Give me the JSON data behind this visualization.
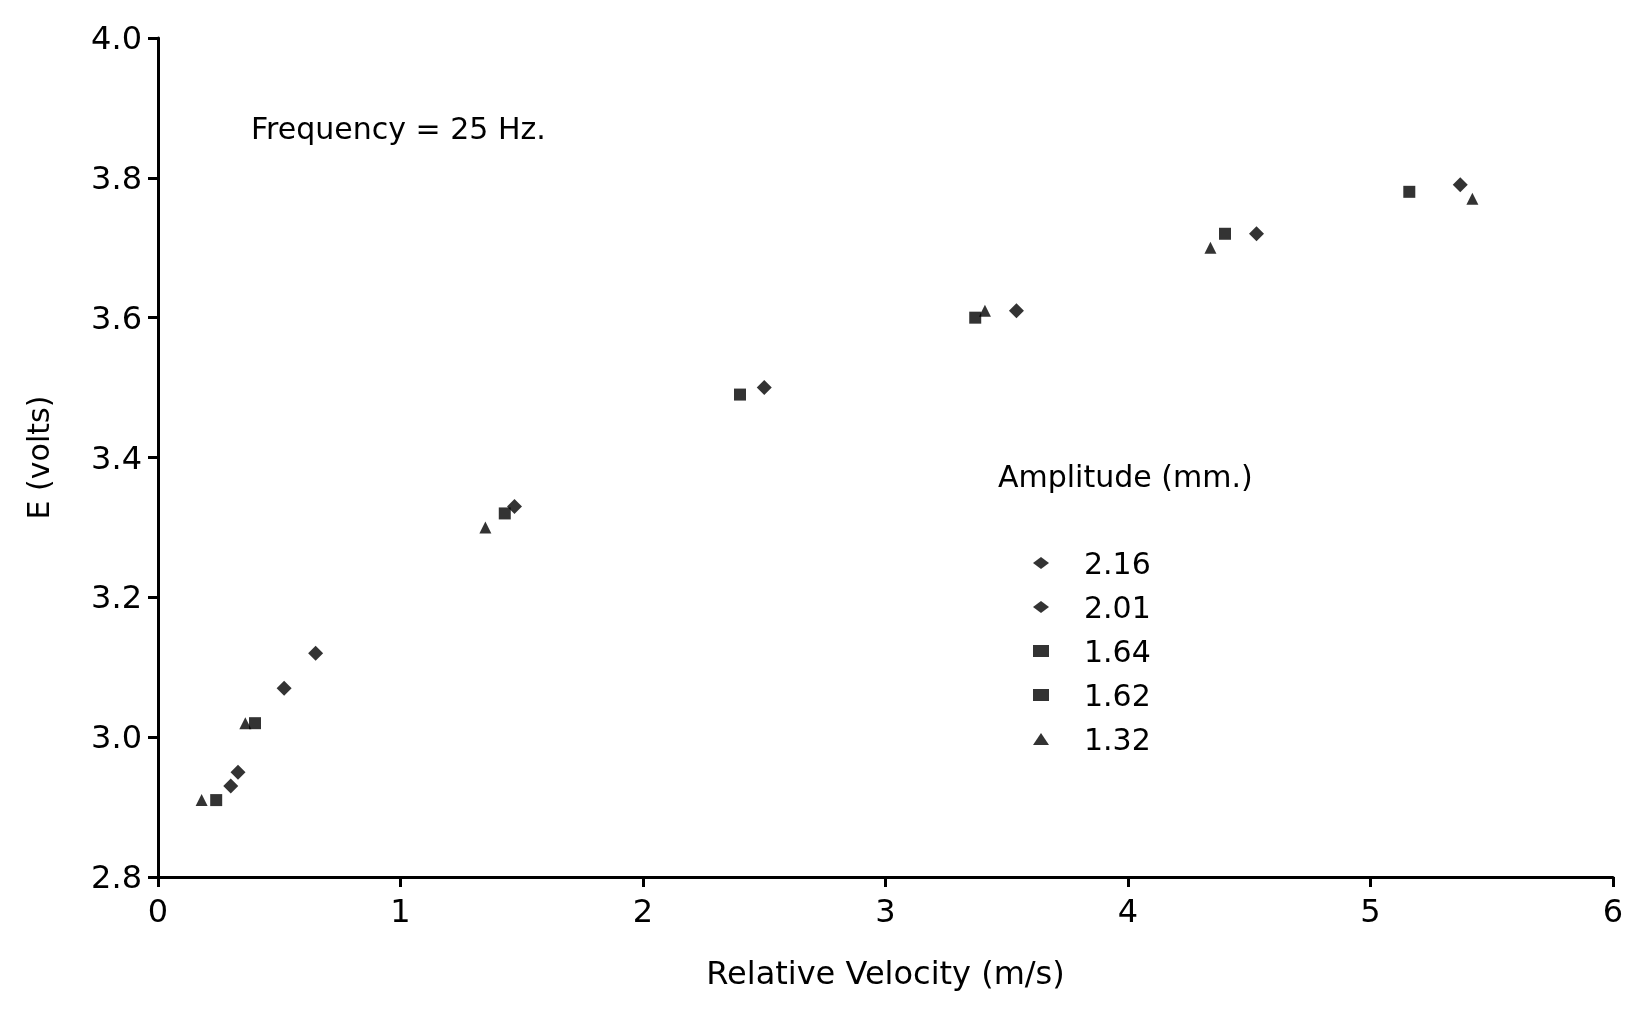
{
  "chart_data": {
    "type": "scatter",
    "xlabel": "Relative Velocity (m/s)",
    "ylabel": "E (volts)",
    "legend_title": "Amplitude (mm.)",
    "annotations": [
      "Frequency = 25 Hz."
    ],
    "xlim": [
      0,
      6
    ],
    "xticks": [
      0,
      1,
      2,
      3,
      4,
      5,
      6
    ],
    "ylim": [
      2.8,
      4.0
    ],
    "yticks": [
      {
        "value": 2.8,
        "label": "2.8"
      },
      {
        "value": 3.0,
        "label": "3.0"
      },
      {
        "value": 3.2,
        "label": "3.2"
      },
      {
        "value": 3.4,
        "label": "3.4"
      },
      {
        "value": 3.6,
        "label": "3.6"
      },
      {
        "value": 3.8,
        "label": "3.8"
      },
      {
        "value": 4.0,
        "label": "4.0"
      }
    ],
    "grid": false,
    "legend": "right",
    "series": [
      {
        "name": "2.16",
        "color": "#000000",
        "marker": "diamond",
        "x": [
          0.33,
          0.52,
          3.54
        ],
        "values": [
          2.95,
          3.07,
          3.61
        ]
      },
      {
        "name": "2.01",
        "color": "#000000",
        "marker": "diamond",
        "x": [
          0.3,
          0.65,
          1.47,
          2.5,
          4.53,
          5.37
        ],
        "values": [
          2.93,
          3.12,
          3.33,
          3.5,
          3.72,
          3.79
        ]
      },
      {
        "name": "1.64",
        "color": "#000000",
        "marker": "square",
        "x": [
          0.4
        ],
        "values": [
          3.02
        ]
      },
      {
        "name": "1.62",
        "color": "#000000",
        "marker": "square",
        "x": [
          0.24,
          1.43,
          2.4,
          3.37,
          4.4,
          5.16
        ],
        "values": [
          2.91,
          3.32,
          3.49,
          3.6,
          3.72,
          3.78
        ]
      },
      {
        "name": "1.32",
        "color": "#000000",
        "marker": "triangle",
        "x": [
          0.18,
          0.36,
          1.35,
          3.41,
          4.34,
          5.42
        ],
        "values": [
          2.91,
          3.02,
          3.3,
          3.61,
          3.7,
          3.77
        ]
      }
    ]
  }
}
